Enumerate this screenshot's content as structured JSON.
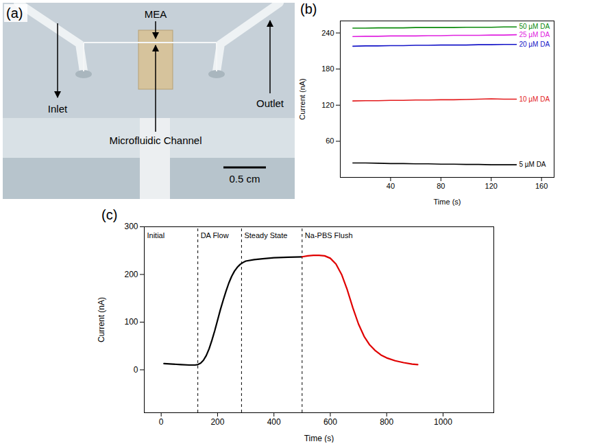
{
  "image": {
    "panel": "(a)",
    "labels": {
      "inlet": "Inlet",
      "outlet": "Outlet",
      "electrode": "MEA",
      "channel": "Microfluidic Channel"
    },
    "scale_bar": "0.5 cm"
  },
  "chart_data": [
    {
      "panel": "(b)",
      "type": "line",
      "x_label": "Time (s)",
      "y_label": "Current (nA)",
      "xlim": [
        0,
        170
      ],
      "ylim": [
        0,
        260
      ],
      "xticks": [
        40,
        80,
        120,
        160
      ],
      "yticks": [
        60,
        120,
        180,
        240
      ],
      "x": [
        10,
        20,
        30,
        40,
        50,
        60,
        70,
        80,
        90,
        100,
        110,
        120,
        130,
        140
      ],
      "series": [
        {
          "name": "5 µM DA",
          "color": "#000000",
          "values": [
            24,
            24,
            23.5,
            23,
            23,
            22.5,
            22.5,
            22,
            22,
            21.5,
            21.5,
            21,
            21,
            21
          ]
        },
        {
          "name": "10 µM DA",
          "color": "#e31a1c",
          "values": [
            127,
            127.5,
            127.5,
            128,
            128,
            128.5,
            128.5,
            129,
            129,
            129.5,
            130,
            130.5,
            130,
            130
          ]
        },
        {
          "name": "20 µM DA",
          "color": "#1414c8",
          "values": [
            218,
            218.5,
            218.5,
            219,
            219,
            219.5,
            219.5,
            220,
            220,
            220,
            220.5,
            220.5,
            221,
            221
          ]
        },
        {
          "name": "25 µM DA",
          "color": "#e020e0",
          "values": [
            234,
            234.5,
            234.5,
            235,
            235,
            235,
            235.5,
            235.5,
            236,
            236,
            236,
            236.5,
            236.5,
            237
          ]
        },
        {
          "name": "50 µM DA",
          "color": "#0a8a0a",
          "values": [
            248,
            248,
            248.5,
            248.5,
            248.5,
            249,
            249,
            249,
            249,
            249.5,
            249.5,
            249.5,
            250,
            250
          ]
        }
      ]
    },
    {
      "panel": "(c)",
      "type": "line",
      "x_label": "Time (s)",
      "y_label": "Current (nA)",
      "xlim": [
        -60,
        1180
      ],
      "ylim": [
        -90,
        300
      ],
      "xticks": [
        0,
        200,
        400,
        600,
        800,
        1000
      ],
      "yticks": [
        0,
        100,
        200,
        300
      ],
      "dividers": [
        130,
        285,
        500
      ],
      "phase_labels": [
        "Initial",
        "DA Flow",
        "Steady State",
        "Na-PBS Flush"
      ],
      "series": [
        {
          "color": "#000000",
          "x": [
            10,
            40,
            70,
            100,
            120,
            130,
            140,
            150,
            160,
            170,
            180,
            190,
            200,
            210,
            220,
            230,
            240,
            250,
            260,
            270,
            280,
            290,
            300,
            330,
            360,
            400,
            450,
            500
          ],
          "values": [
            13,
            12,
            11,
            10,
            10,
            11,
            14,
            20,
            30,
            44,
            62,
            82,
            104,
            126,
            146,
            165,
            182,
            196,
            207,
            215,
            221,
            225,
            228,
            231,
            233,
            235,
            236,
            237
          ]
        },
        {
          "color": "#e00000",
          "x": [
            500,
            520,
            540,
            560,
            580,
            600,
            620,
            640,
            660,
            680,
            700,
            720,
            740,
            760,
            780,
            800,
            830,
            860,
            890,
            910
          ],
          "values": [
            237,
            239,
            240,
            240,
            239,
            234,
            222,
            200,
            168,
            130,
            96,
            70,
            52,
            40,
            31,
            25,
            19,
            15,
            12,
            11
          ]
        }
      ]
    }
  ]
}
